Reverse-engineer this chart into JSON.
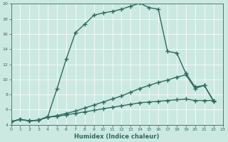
{
  "xlabel": "Humidex (Indice chaleur)",
  "ylabel": "",
  "xlim": [
    0,
    23
  ],
  "ylim": [
    4,
    20
  ],
  "xticks": [
    0,
    1,
    2,
    3,
    4,
    5,
    6,
    7,
    8,
    9,
    10,
    11,
    12,
    13,
    14,
    15,
    16,
    17,
    18,
    19,
    20,
    21,
    22,
    23
  ],
  "yticks": [
    4,
    6,
    8,
    10,
    12,
    14,
    16,
    18,
    20
  ],
  "bg_color": "#cce9e1",
  "line_color": "#2e6b5e",
  "grid_color": "#b0d4cc",
  "line1_x": [
    0,
    1,
    2,
    3,
    4,
    5,
    6,
    7,
    8,
    9,
    10,
    11,
    12,
    13,
    14,
    15,
    16,
    17,
    18,
    19,
    20,
    21,
    22
  ],
  "line1_y": [
    4.4,
    4.7,
    4.5,
    4.6,
    5.1,
    8.8,
    12.7,
    16.2,
    17.3,
    18.5,
    18.8,
    19.0,
    19.3,
    19.7,
    20.1,
    19.5,
    19.3,
    13.7,
    13.5,
    10.8,
    9.0,
    9.2,
    7.1
  ],
  "line2_x": [
    0,
    1,
    2,
    3,
    4,
    5,
    6,
    7,
    8,
    9,
    10,
    11,
    12,
    13,
    14,
    15,
    16,
    17,
    18,
    19,
    20,
    21,
    22
  ],
  "line2_y": [
    4.4,
    4.7,
    4.5,
    4.6,
    5.0,
    5.2,
    5.5,
    5.8,
    6.2,
    6.6,
    7.0,
    7.4,
    7.8,
    8.3,
    8.8,
    9.2,
    9.6,
    9.9,
    10.3,
    10.6,
    8.8,
    9.2,
    7.2
  ],
  "line3_x": [
    0,
    1,
    2,
    3,
    4,
    5,
    6,
    7,
    8,
    9,
    10,
    11,
    12,
    13,
    14,
    15,
    16,
    17,
    18,
    19,
    20,
    21,
    22
  ],
  "line3_y": [
    4.4,
    4.7,
    4.5,
    4.6,
    5.0,
    5.1,
    5.3,
    5.5,
    5.7,
    5.9,
    6.1,
    6.3,
    6.5,
    6.7,
    6.9,
    7.0,
    7.1,
    7.2,
    7.3,
    7.4,
    7.2,
    7.2,
    7.2
  ],
  "marker": "+",
  "markersize": 4,
  "linewidth": 1.0
}
